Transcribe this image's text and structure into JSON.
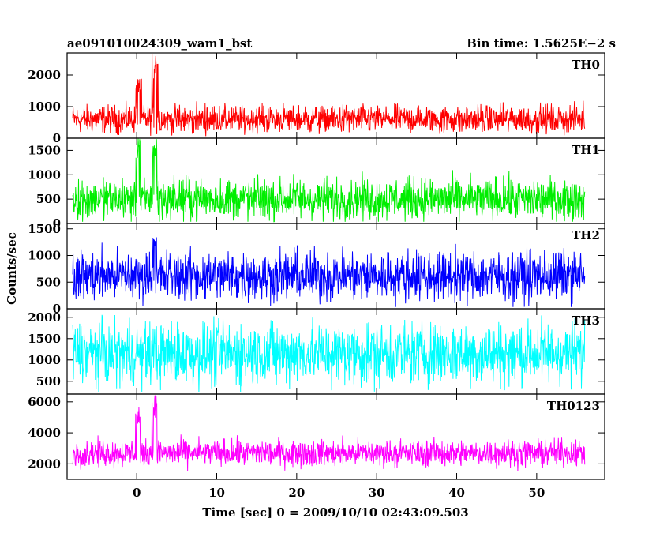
{
  "title_left": "ae091010024309_wam1_bst",
  "title_right": "Bin time: 1.5625E−2 s",
  "xlabel": "Time [sec] 0 = 2009/10/10 02:43:09.503",
  "ylabel": "Counts/sec",
  "chart_data": {
    "type": "line",
    "xlim": [
      -8.7,
      58.5
    ],
    "x_range_data": [
      -8.0,
      56.0
    ],
    "bin_time": 0.015625,
    "x_ticks": [
      0,
      10,
      20,
      30,
      40,
      50
    ],
    "x_tick_labels": [
      "0",
      "10",
      "20",
      "30",
      "40",
      "50"
    ],
    "panels": [
      {
        "name": "TH0",
        "color": "#ff0000",
        "ylim": [
          0,
          2700
        ],
        "y_ticks": [
          0,
          1000,
          2000
        ],
        "y_tick_labels": [
          "0",
          "1000",
          "2000"
        ],
        "baseline": 600,
        "noise": 310,
        "features": [
          {
            "x": 0.2,
            "peak": 1900
          },
          {
            "x": 2.3,
            "peak": 2700
          }
        ]
      },
      {
        "name": "TH1",
        "color": "#00ee00",
        "ylim": [
          0,
          1750
        ],
        "y_ticks": [
          0,
          500,
          1000,
          1500
        ],
        "y_tick_labels": [
          "0",
          "500",
          "1000",
          "1500"
        ],
        "baseline": 500,
        "noise": 300,
        "features": [
          {
            "x": 0.2,
            "peak": 1750
          },
          {
            "x": 2.3,
            "peak": 1750
          }
        ]
      },
      {
        "name": "TH2",
        "color": "#0000ff",
        "ylim": [
          0,
          1600
        ],
        "y_ticks": [
          0,
          500,
          1000,
          1500
        ],
        "y_tick_labels": [
          "0",
          "500",
          "1000",
          "1500"
        ],
        "baseline": 620,
        "noise": 330,
        "features": [
          {
            "x": 2.3,
            "peak": 1500
          }
        ]
      },
      {
        "name": "TH3",
        "color": "#00ffff",
        "ylim": [
          200,
          2200
        ],
        "y_ticks": [
          500,
          1000,
          1500,
          2000
        ],
        "y_tick_labels": [
          "500",
          "1000",
          "1500",
          "2000"
        ],
        "baseline": 1150,
        "noise": 520,
        "features": []
      },
      {
        "name": "TH0123",
        "color": "#ff00ff",
        "ylim": [
          1000,
          6500
        ],
        "y_ticks": [
          2000,
          4000,
          6000
        ],
        "y_tick_labels": [
          "2000",
          "4000",
          "6000"
        ],
        "baseline": 2700,
        "noise": 600,
        "features": [
          {
            "x": 0.2,
            "peak": 5700
          },
          {
            "x": 2.3,
            "peak": 6500
          }
        ]
      }
    ]
  }
}
